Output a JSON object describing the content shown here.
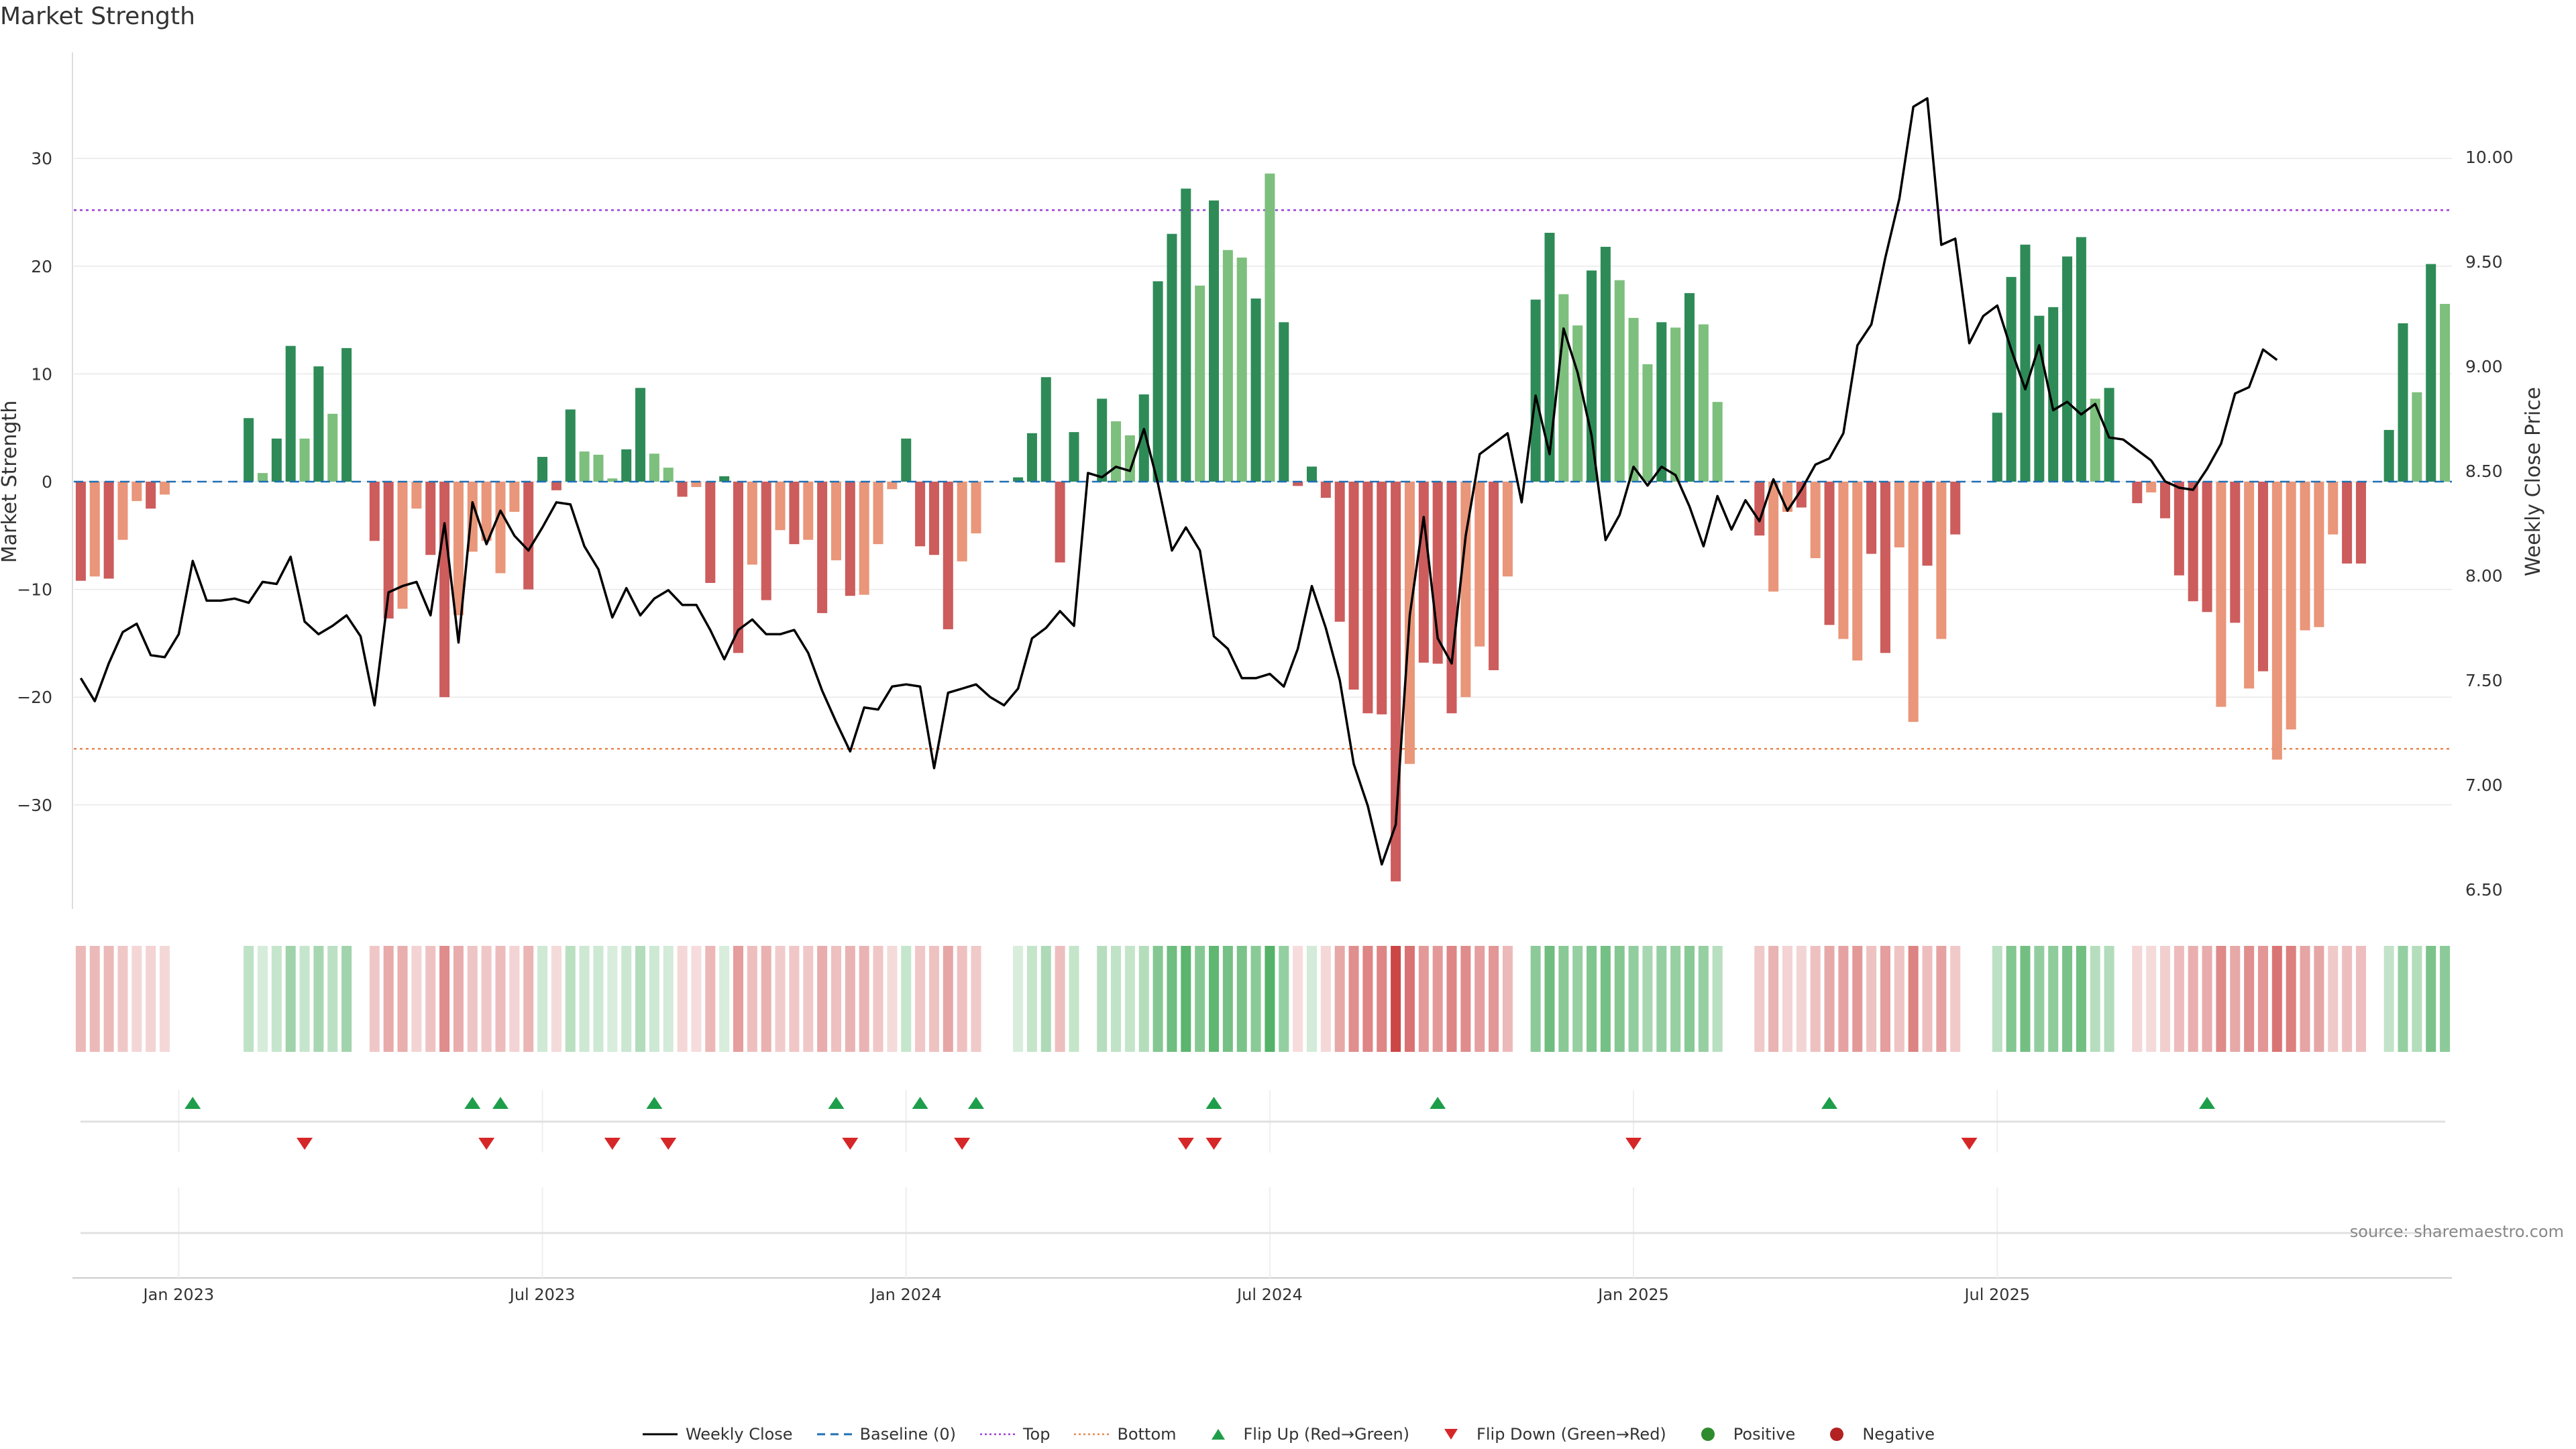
{
  "chart_data": {
    "type": "bar",
    "title": "Market Strength",
    "source": "source: sharemaestro.com",
    "ylabel_left": "Market Strength",
    "ylabel_right": "Weekly Close Price",
    "left_ticks": [
      "30",
      "20",
      "10",
      "0",
      "−10",
      "−20",
      "−30"
    ],
    "left_tick_values": [
      30,
      20,
      10,
      0,
      -10,
      -20,
      -30
    ],
    "right_ticks": [
      "10.00",
      "9.50",
      "9.00",
      "8.50",
      "8.00",
      "7.50",
      "7.00",
      "6.50"
    ],
    "right_tick_values": [
      10.0,
      9.5,
      9.0,
      8.5,
      8.0,
      7.5,
      7.0,
      6.5
    ],
    "x_ticks": [
      "Jan 2023",
      "Jul 2023",
      "Jan 2024",
      "Jul 2024",
      "Jan 2025",
      "Jul 2025"
    ],
    "x_tick_weeks": [
      7,
      33,
      59,
      85,
      111,
      137
    ],
    "ylim": [
      -40,
      40
    ],
    "y2lim": [
      6.41,
      10.43
    ],
    "top_line": 25.2,
    "bottom_line": -24.8,
    "strength": [
      -9.2,
      -8.8,
      -9.0,
      -5.4,
      -1.8,
      -2.5,
      -1.2,
      0,
      0,
      0,
      0,
      0,
      5.9,
      0.8,
      4.0,
      12.6,
      4.0,
      10.7,
      6.3,
      12.4,
      0,
      -5.5,
      -12.7,
      -11.8,
      -2.5,
      -6.8,
      -20.0,
      -12.4,
      -6.5,
      -5.5,
      -8.5,
      -2.8,
      -10.0,
      2.3,
      -0.8,
      6.7,
      2.8,
      2.5,
      0.3,
      3.0,
      8.7,
      2.6,
      1.3,
      -1.4,
      -0.5,
      -9.4,
      0.5,
      -15.9,
      -7.7,
      -11.0,
      -4.5,
      -5.8,
      -5.4,
      -12.2,
      -7.3,
      -10.6,
      -10.5,
      -5.8,
      -0.7,
      4.0,
      -6.0,
      -6.8,
      -13.7,
      -7.4,
      -4.8,
      0,
      0,
      0.4,
      4.5,
      9.7,
      -7.5,
      4.6,
      0,
      7.7,
      5.6,
      4.3,
      8.1,
      18.6,
      23.0,
      27.2,
      18.2,
      26.1,
      21.5,
      20.8,
      17.0,
      28.6,
      14.8,
      -0.4,
      1.4,
      -1.5,
      -13.0,
      -19.3,
      -21.5,
      -21.6,
      -37.1,
      -26.2,
      -16.8,
      -16.9,
      -21.5,
      -20.0,
      -15.3,
      -17.5,
      -8.8,
      0,
      16.9,
      23.1,
      17.4,
      14.5,
      19.6,
      21.8,
      18.7,
      15.2,
      10.9,
      14.8,
      14.3,
      17.5,
      14.6,
      7.4,
      0,
      0,
      -5.0,
      -10.2,
      -2.8,
      -2.4,
      -7.1,
      -13.3,
      -14.6,
      -16.6,
      -6.7,
      -15.9,
      -6.1,
      -22.3,
      -7.8,
      -14.6,
      -4.9,
      0,
      0,
      6.4,
      19.0,
      22.0,
      15.4,
      16.2,
      20.9,
      22.7,
      7.7,
      8.7,
      0,
      -2.0,
      -1.0,
      -3.4,
      -8.7,
      -11.1,
      -12.1,
      -20.9,
      -13.1,
      -19.2,
      -17.6,
      -25.8,
      -23.0,
      -13.8,
      -13.5,
      -4.9,
      -7.6,
      -7.6,
      0,
      4.8,
      14.7,
      8.3,
      20.2,
      16.5
    ],
    "bar_shade": [
      0,
      1,
      0,
      1,
      1,
      0,
      1,
      0,
      0,
      0,
      0,
      0,
      0,
      1,
      0,
      0,
      1,
      0,
      1,
      0,
      0,
      0,
      0,
      1,
      1,
      0,
      0,
      1,
      1,
      1,
      1,
      1,
      0,
      0,
      0,
      0,
      1,
      1,
      1,
      0,
      0,
      1,
      1,
      0,
      1,
      0,
      0,
      0,
      1,
      0,
      1,
      0,
      1,
      0,
      1,
      0,
      1,
      1,
      1,
      0,
      0,
      0,
      0,
      1,
      1,
      0,
      0,
      0,
      0,
      0,
      0,
      0,
      0,
      0,
      1,
      1,
      0,
      0,
      0,
      0,
      1,
      0,
      1,
      1,
      0,
      1,
      0,
      0,
      0,
      0,
      0,
      0,
      0,
      0,
      0,
      1,
      0,
      0,
      0,
      1,
      1,
      0,
      1,
      0,
      0,
      0,
      1,
      1,
      0,
      0,
      1,
      1,
      1,
      0,
      1,
      0,
      1,
      1,
      0,
      0,
      0,
      1,
      1,
      0,
      1,
      0,
      1,
      1,
      0,
      0,
      1,
      1,
      0,
      1,
      0,
      0,
      0,
      0,
      0,
      0,
      0,
      0,
      0,
      0,
      1,
      0,
      0,
      0,
      1,
      0,
      0,
      0,
      0,
      1,
      0,
      1,
      0,
      1,
      1,
      1,
      1,
      1,
      0,
      0,
      0,
      0,
      0,
      1,
      0,
      1
    ],
    "weekly_close": [
      7.51,
      7.4,
      7.58,
      7.73,
      7.77,
      7.62,
      7.61,
      7.72,
      8.07,
      7.88,
      7.88,
      7.89,
      7.87,
      7.97,
      7.96,
      8.09,
      7.78,
      7.72,
      7.76,
      7.81,
      7.71,
      7.38,
      7.92,
      7.95,
      7.97,
      7.81,
      8.25,
      7.68,
      8.35,
      8.15,
      8.31,
      8.19,
      8.12,
      8.23,
      8.35,
      8.34,
      8.14,
      8.03,
      7.8,
      7.94,
      7.81,
      7.89,
      7.93,
      7.86,
      7.86,
      7.74,
      7.6,
      7.74,
      7.79,
      7.72,
      7.72,
      7.74,
      7.63,
      7.45,
      7.3,
      7.16,
      7.37,
      7.36,
      7.47,
      7.48,
      7.47,
      7.08,
      7.44,
      7.46,
      7.48,
      7.42,
      7.38,
      7.46,
      7.7,
      7.75,
      7.83,
      7.76,
      8.49,
      8.47,
      8.52,
      8.5,
      8.7,
      8.44,
      8.12,
      8.23,
      8.12,
      7.71,
      7.65,
      7.51,
      7.51,
      7.53,
      7.47,
      7.65,
      7.95,
      7.75,
      7.5,
      7.1,
      6.9,
      6.62,
      6.81,
      7.81,
      8.28,
      7.7,
      7.58,
      8.19,
      8.58,
      8.63,
      8.68,
      8.35,
      8.86,
      8.58,
      9.18,
      8.97,
      8.67,
      8.17,
      8.29,
      8.52,
      8.43,
      8.52,
      8.48,
      8.33,
      8.14,
      8.38,
      8.22,
      8.36,
      8.26,
      8.46,
      8.31,
      8.41,
      8.53,
      8.56,
      8.68,
      9.1,
      9.2,
      9.52,
      9.8,
      10.24,
      10.28,
      9.58,
      9.61,
      9.11,
      9.24,
      9.29,
      9.08,
      8.89,
      9.1,
      8.79,
      8.83,
      8.77,
      8.82,
      8.66,
      8.65,
      8.6,
      8.55,
      8.45,
      8.42,
      8.41,
      8.51,
      8.63,
      8.87,
      8.9,
      9.08,
      9.03
    ],
    "flip_up_weeks": [
      8,
      28,
      30,
      41,
      54,
      60,
      64,
      81,
      97,
      125,
      152
    ],
    "flip_down_weeks": [
      16,
      29,
      38,
      42,
      55,
      63,
      79,
      81,
      111,
      135
    ],
    "legend": [
      {
        "label": "Weekly Close",
        "symbol": "line",
        "color": "#000000"
      },
      {
        "label": "Baseline (0)",
        "symbol": "dash",
        "color": "#1f6fb4"
      },
      {
        "label": "Top",
        "symbol": "dot",
        "color": "#9b3fd6"
      },
      {
        "label": "Bottom",
        "symbol": "dot",
        "color": "#e8864f"
      },
      {
        "label": "Flip Up (Red→Green)",
        "symbol": "tri-up",
        "color": "#1e9e4a"
      },
      {
        "label": "Flip Down (Green→Red)",
        "symbol": "tri-down",
        "color": "#d62728"
      },
      {
        "label": "Positive",
        "symbol": "circle",
        "color": "#2e8b2e"
      },
      {
        "label": "Negative",
        "symbol": "circle",
        "color": "#b22222"
      }
    ],
    "colors": {
      "pos_dark": "#2e8b57",
      "pos_light": "#7dbf7d",
      "neg_dark": "#cd5c5c",
      "neg_light": "#e9967a",
      "price": "#000000",
      "grid": "#e8e8e8"
    }
  }
}
